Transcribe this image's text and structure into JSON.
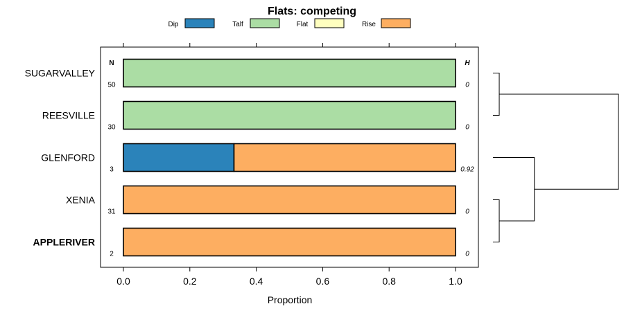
{
  "chart_data": {
    "type": "bar",
    "orientation": "horizontal",
    "stacked": true,
    "title": "Flats: competing",
    "xlabel": "Proportion",
    "ylabel": "",
    "xlim": [
      0,
      1
    ],
    "x_ticks": [
      {
        "value": 0.0,
        "label": "0.0"
      },
      {
        "value": 0.2,
        "label": "0.2"
      },
      {
        "value": 0.4,
        "label": "0.4"
      },
      {
        "value": 0.6,
        "label": "0.6"
      },
      {
        "value": 0.8,
        "label": "0.8"
      },
      {
        "value": 1.0,
        "label": "1.0"
      }
    ],
    "legend_position": "top",
    "series": [
      {
        "name": "Dip",
        "color": "#2b83ba"
      },
      {
        "name": "Talf",
        "color": "#abdda4"
      },
      {
        "name": "Flat",
        "color": "#ffffbf"
      },
      {
        "name": "Rise",
        "color": "#fdae61"
      }
    ],
    "n_header": "N",
    "h_header": "H",
    "rows": [
      {
        "name": "SUGARVALLEY",
        "bold": false,
        "n": "50",
        "h": "0",
        "values": [
          0,
          1,
          0,
          0
        ]
      },
      {
        "name": "REESVILLE",
        "bold": false,
        "n": "30",
        "h": "0",
        "values": [
          0,
          1,
          0,
          0
        ]
      },
      {
        "name": "GLENFORD",
        "bold": false,
        "n": "3",
        "h": "0.92",
        "values": [
          0.333,
          0,
          0,
          0.667
        ]
      },
      {
        "name": "XENIA",
        "bold": false,
        "n": "31",
        "h": "0",
        "values": [
          0,
          0,
          0,
          1
        ]
      },
      {
        "name": "APPLERIVER",
        "bold": true,
        "n": "2",
        "h": "0",
        "values": [
          0,
          0,
          0,
          1
        ]
      }
    ],
    "dendrogram": {
      "leaf_order": [
        "SUGARVALLEY",
        "REESVILLE",
        "GLENFORD",
        "XENIA",
        "APPLERIVER"
      ],
      "merges": [
        {
          "left": "SUGARVALLEY",
          "right": "REESVILLE",
          "height": 0.05
        },
        {
          "left": "XENIA",
          "right": "APPLERIVER",
          "height": 0.05
        },
        {
          "left": "GLENFORD",
          "right": "XENIA+APPLERIVER",
          "height": 0.33
        },
        {
          "left": "SUGARVALLEY+REESVILLE",
          "right": "GLENFORD+XENIA+APPLERIVER",
          "height": 1.0
        }
      ]
    }
  }
}
